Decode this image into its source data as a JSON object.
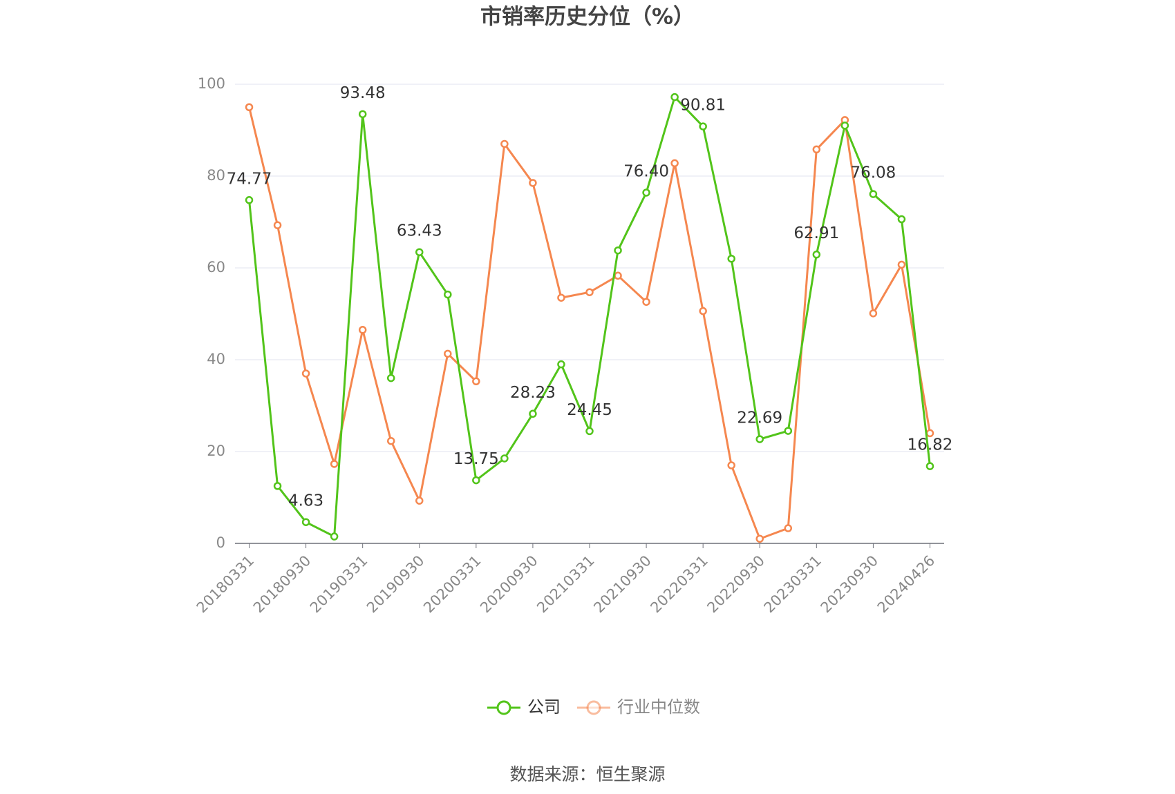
{
  "chart_data": {
    "type": "line",
    "title": "市销率历史分位（%）",
    "categories": [
      "20180331",
      null,
      "20180930",
      null,
      "20190331",
      null,
      "20190930",
      null,
      "20200331",
      null,
      "20200930",
      null,
      "20210331",
      null,
      "20210930",
      null,
      "20220331",
      null,
      "20220930",
      null,
      "20230331",
      null,
      "20230930",
      null,
      "20240426"
    ],
    "series": [
      {
        "name": "公司",
        "color": "#52c41a",
        "values": [
          74.77,
          12.5,
          4.63,
          1.5,
          93.48,
          36,
          63.43,
          54.2,
          13.75,
          18.5,
          28.23,
          39,
          24.45,
          63.8,
          76.4,
          97.2,
          90.81,
          62,
          22.69,
          24.5,
          62.91,
          91,
          76.08,
          70.6,
          16.82
        ],
        "value_labels": [
          "74.77",
          null,
          "4.63",
          null,
          "93.48",
          null,
          "63.43",
          null,
          "13.75",
          null,
          "28.23",
          null,
          "24.45",
          null,
          "76.40",
          null,
          "90.81",
          null,
          "22.69",
          null,
          "62.91",
          null,
          "76.08",
          null,
          "16.82"
        ]
      },
      {
        "name": "行业中位数",
        "color": "#f5874f",
        "values": [
          95,
          69.3,
          37,
          17.3,
          46.5,
          22.3,
          9.3,
          41.3,
          35.3,
          87,
          78.5,
          53.5,
          54.7,
          58.3,
          52.6,
          82.8,
          50.6,
          17,
          1,
          3.3,
          85.8,
          92.2,
          50.1,
          60.7,
          24
        ]
      }
    ],
    "ylim": [
      0,
      100
    ],
    "yticks": [
      0,
      20,
      40,
      60,
      80,
      100
    ],
    "grid": true,
    "legend": "bottom",
    "source": "数据来源：恒生聚源"
  }
}
